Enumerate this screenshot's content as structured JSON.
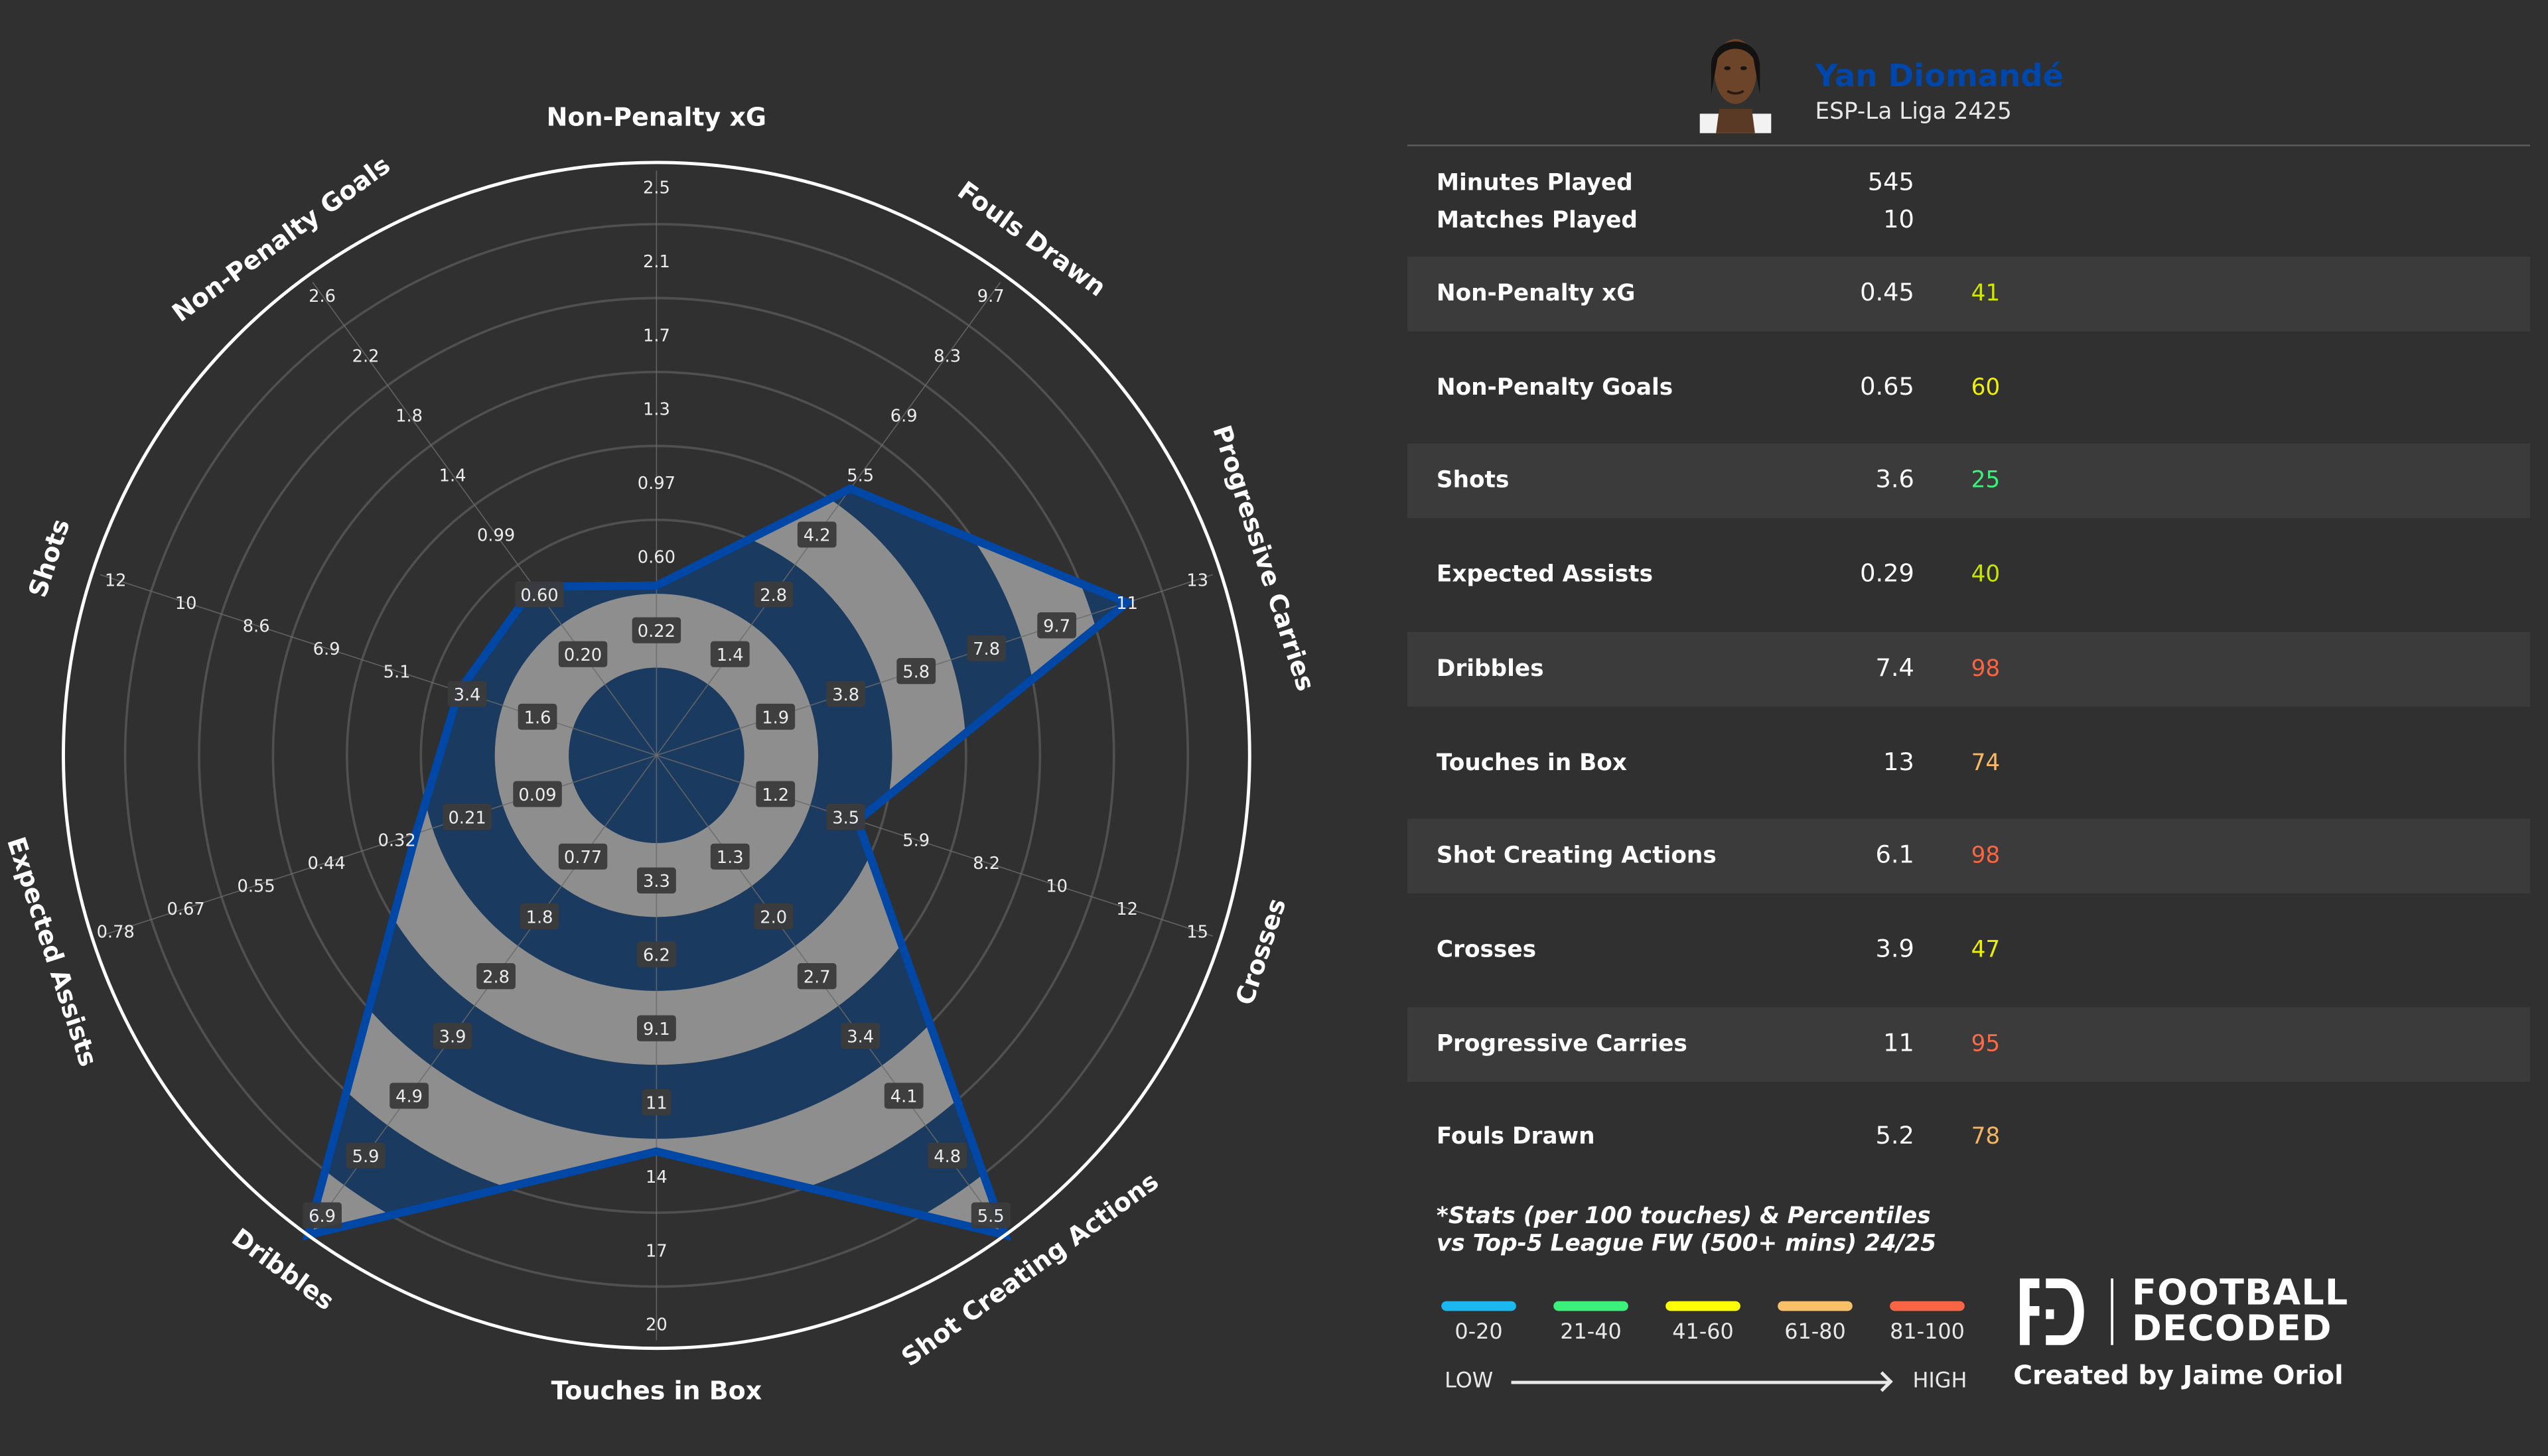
{
  "player": {
    "name": "Yan Diomandé",
    "subtitle": "ESP-La Liga 2425",
    "name_color": "#0047ab"
  },
  "meta": [
    {
      "label": "Minutes Played",
      "value": "545"
    },
    {
      "label": "Matches Played",
      "value": "10"
    }
  ],
  "stats": [
    {
      "label": "Non-Penalty xG",
      "value": "0.45",
      "percentile": "41",
      "color": "#cfe600"
    },
    {
      "label": "Non-Penalty Goals",
      "value": "0.65",
      "percentile": "60",
      "color": "#f0f000"
    },
    {
      "label": "Shots",
      "value": "3.6",
      "percentile": "25",
      "color": "#3cf07c"
    },
    {
      "label": "Expected Assists",
      "value": "0.29",
      "percentile": "40",
      "color": "#c8e400"
    },
    {
      "label": "Dribbles",
      "value": "7.4",
      "percentile": "98",
      "color": "#f86444"
    },
    {
      "label": "Touches in Box",
      "value": "13",
      "percentile": "74",
      "color": "#f9b865"
    },
    {
      "label": "Shot Creating Actions",
      "value": "6.1",
      "percentile": "98",
      "color": "#f86444"
    },
    {
      "label": "Crosses",
      "value": "3.9",
      "percentile": "47",
      "color": "#eef000"
    },
    {
      "label": "Progressive Carries",
      "value": "11",
      "percentile": "95",
      "color": "#f86a48"
    },
    {
      "label": "Fouls Drawn",
      "value": "5.2",
      "percentile": "78",
      "color": "#f7b460"
    }
  ],
  "note": [
    "*Stats (per 100 touches) & Percentiles",
    "vs Top-5 League FW (500+ mins) 24/25"
  ],
  "legend": {
    "items": [
      {
        "label": "0-20",
        "color": "#1bb8f0"
      },
      {
        "label": "21-40",
        "color": "#3cf07c"
      },
      {
        "label": "41-60",
        "color": "#ffff00"
      },
      {
        "label": "61-80",
        "color": "#f9c06a"
      },
      {
        "label": "81-100",
        "color": "#f86444"
      }
    ],
    "low": "LOW",
    "high": "HIGH"
  },
  "brand": {
    "line1": "FOOTBALL",
    "line2": "DECODED",
    "credit": "Created by Jaime Oriol"
  },
  "chart_data": {
    "type": "radar",
    "colors": {
      "band_dark": "#1a3a5f",
      "band_light": "#8d8e8d",
      "outline": "#0047a6",
      "background": "#2f302f"
    },
    "axes": [
      {
        "name": "Non-Penalty xG",
        "ticks": [
          "0.22",
          "0.60",
          "0.97",
          "1.3",
          "1.7",
          "2.1",
          "2.5"
        ],
        "value": 0.45
      },
      {
        "name": "Fouls Drawn",
        "ticks": [
          "1.4",
          "2.8",
          "4.2",
          "5.5",
          "6.9",
          "8.3",
          "9.7"
        ],
        "value": 5.2
      },
      {
        "name": "Progressive Carries",
        "ticks": [
          "1.9",
          "3.8",
          "5.8",
          "7.8",
          "9.7",
          "11",
          "13"
        ],
        "value": 11
      },
      {
        "name": "Crosses",
        "ticks": [
          "1.2",
          "3.5",
          "5.9",
          "8.2",
          "10",
          "12",
          "15"
        ],
        "value": 3.9
      },
      {
        "name": "Shot Creating Actions",
        "ticks": [
          "1.3",
          "2.0",
          "2.7",
          "3.4",
          "4.1",
          "4.8",
          "5.5"
        ],
        "value": 6.1
      },
      {
        "name": "Touches in Box",
        "ticks": [
          "3.3",
          "6.2",
          "9.1",
          "11",
          "14",
          "17",
          "20"
        ],
        "value": 13
      },
      {
        "name": "Dribbles",
        "ticks": [
          "0.77",
          "1.8",
          "2.8",
          "3.9",
          "4.9",
          "5.9",
          "6.9"
        ],
        "value": 7.4
      },
      {
        "name": "Expected Assists",
        "ticks": [
          "0.09",
          "0.21",
          "0.32",
          "0.44",
          "0.55",
          "0.67",
          "0.78"
        ],
        "value": 0.29
      },
      {
        "name": "Shots",
        "ticks": [
          "1.6",
          "3.4",
          "5.1",
          "6.9",
          "8.6",
          "10",
          "12"
        ],
        "value": 3.6
      },
      {
        "name": "Non-Penalty Goals",
        "ticks": [
          "0.20",
          "0.60",
          "0.99",
          "1.4",
          "1.8",
          "2.2",
          "2.6"
        ],
        "value": 0.65
      }
    ]
  }
}
